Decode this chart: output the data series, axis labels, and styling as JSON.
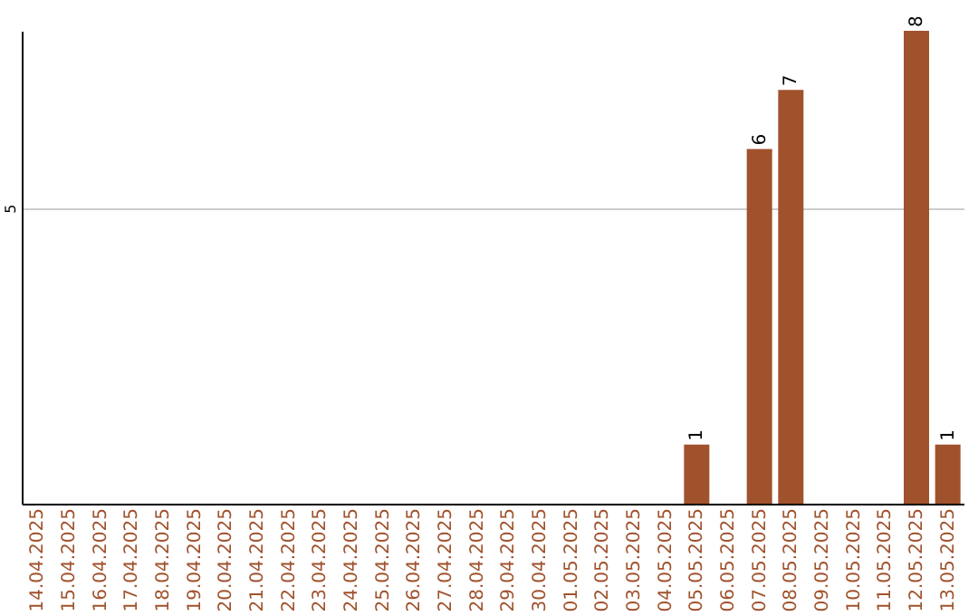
{
  "chart_data": {
    "type": "bar",
    "categories": [
      "14.04.2025",
      "15.04.2025",
      "16.04.2025",
      "17.04.2025",
      "18.04.2025",
      "19.04.2025",
      "20.04.2025",
      "21.04.2025",
      "22.04.2025",
      "23.04.2025",
      "24.04.2025",
      "25.04.2025",
      "26.04.2025",
      "27.04.2025",
      "28.04.2025",
      "29.04.2025",
      "30.04.2025",
      "01.05.2025",
      "02.05.2025",
      "03.05.2025",
      "04.05.2025",
      "05.05.2025",
      "06.05.2025",
      "07.05.2025",
      "08.05.2025",
      "09.05.2025",
      "10.05.2025",
      "11.05.2025",
      "12.05.2025",
      "13.05.2025"
    ],
    "values": [
      null,
      null,
      null,
      null,
      null,
      null,
      null,
      null,
      null,
      null,
      null,
      null,
      null,
      null,
      null,
      null,
      null,
      null,
      null,
      null,
      null,
      1,
      null,
      6,
      7,
      null,
      null,
      null,
      8,
      1
    ],
    "data_labels": true,
    "color": "#a0522d",
    "ylim": [
      0,
      8
    ],
    "yticks": [
      5
    ],
    "grid": "y"
  }
}
